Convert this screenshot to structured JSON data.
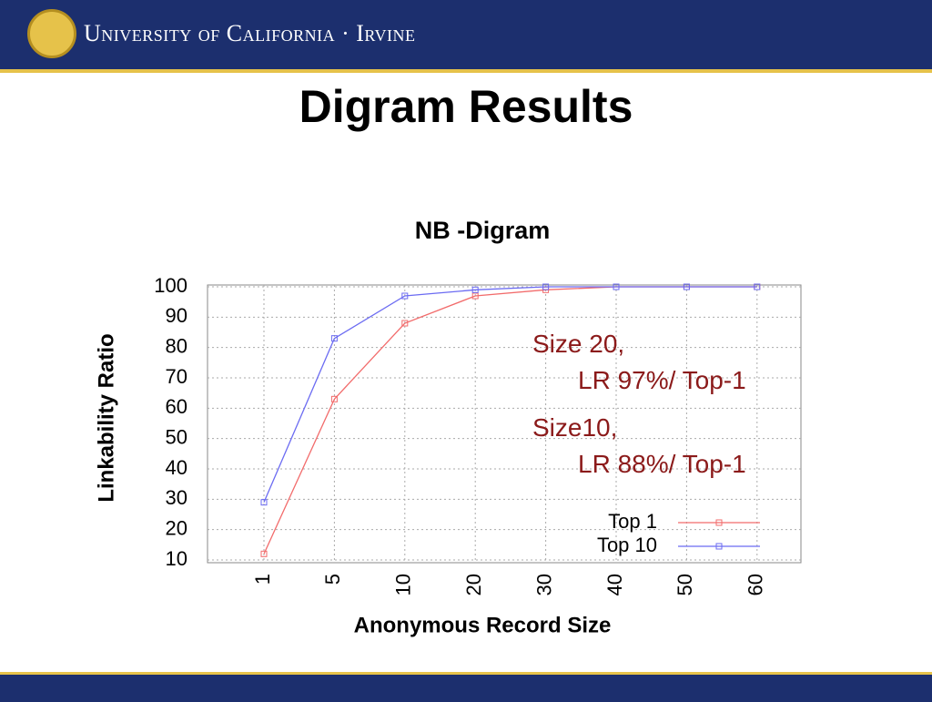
{
  "header": {
    "institution": "University of California · Irvine"
  },
  "chart_data": {
    "type": "line",
    "title": "Digram Results",
    "subtitle": "NB -Digram",
    "x_label": "Anonymous Record Size",
    "y_label": "Linkability Ratio",
    "categories": [
      "1",
      "5",
      "10",
      "20",
      "30",
      "40",
      "50",
      "60"
    ],
    "series": [
      {
        "name": "Top 1",
        "color": "#f26b6b",
        "values": [
          12,
          63,
          88,
          97,
          99,
          100,
          100,
          100
        ]
      },
      {
        "name": "Top 10",
        "color": "#6b6bf2",
        "values": [
          29,
          83,
          97,
          99,
          100,
          100,
          100,
          100
        ]
      }
    ],
    "ylim": [
      10,
      100
    ],
    "yticks": [
      10,
      20,
      30,
      40,
      50,
      60,
      70,
      80,
      90,
      100
    ],
    "grid": true,
    "legend": "lower right",
    "annotations": [
      {
        "lines": [
          "Size 20,",
          "LR 97%/ Top-1"
        ]
      },
      {
        "lines": [
          "Size10,",
          "LR 88%/ Top-1"
        ]
      }
    ]
  }
}
